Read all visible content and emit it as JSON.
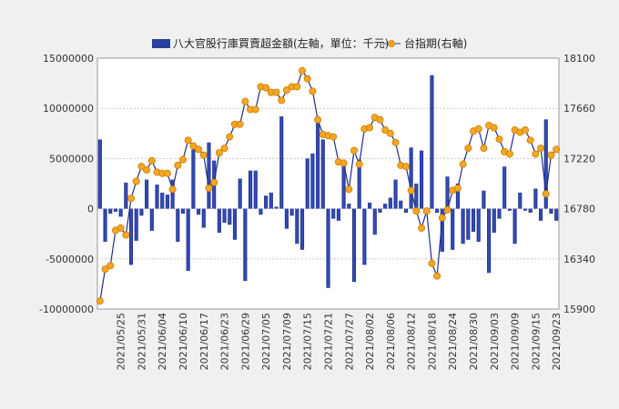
{
  "chart_data": {
    "type": "bar+line",
    "legend": [
      {
        "name": "八大官股行庫買賣超金額(左軸，單位：千元)",
        "type": "bar",
        "color": "#2a3f9e"
      },
      {
        "name": "台指期(右軸)",
        "type": "line",
        "color": "#f5a623"
      }
    ],
    "left_axis": {
      "min": -10000000,
      "max": 15000000,
      "ticks": [
        "15000000",
        "10000000",
        "5000000",
        "0",
        "-5000000",
        "-10000000"
      ]
    },
    "right_axis": {
      "min": 15900,
      "max": 18100,
      "ticks": [
        "18100",
        "17660",
        "17220",
        "16780",
        "16340",
        "15900"
      ]
    },
    "x_tick_labels": [
      "2021/05/25",
      "2021/05/31",
      "2021/06/04",
      "2021/06/10",
      "2021/06/17",
      "2021/06/23",
      "2021/06/29",
      "2021/07/05",
      "2021/07/09",
      "2021/07/15",
      "2021/07/21",
      "2021/07/27",
      "2021/08/02",
      "2021/08/06",
      "2021/08/12",
      "2021/08/18",
      "2021/08/24",
      "2021/08/30",
      "2021/09/03",
      "2021/09/09",
      "2021/09/15",
      "2021/09/23"
    ],
    "x_tick_every": 4,
    "bar_values": [
      6900000,
      -3300000,
      -500000,
      -300000,
      -800000,
      2600000,
      -5600000,
      -3200000,
      -700000,
      2900000,
      -2200000,
      2400000,
      1600000,
      1400000,
      2900000,
      -3300000,
      -500000,
      -6200000,
      5900000,
      -600000,
      -1900000,
      6600000,
      4800000,
      -2400000,
      -1400000,
      -1600000,
      -3100000,
      3000000,
      -7200000,
      3800000,
      3800000,
      -600000,
      1300000,
      1600000,
      200000,
      9200000,
      -2000000,
      -700000,
      -3500000,
      -4100000,
      5000000,
      5500000,
      8600000,
      6900000,
      -7900000,
      -1000000,
      -1200000,
      4800000,
      500000,
      -7300000,
      4900000,
      -5600000,
      600000,
      -2600000,
      -400000,
      500000,
      1100000,
      2900000,
      800000,
      -400000,
      6100000,
      2500000,
      5800000,
      -200000,
      13300000,
      -400000,
      -4300000,
      3200000,
      -4100000,
      2500000,
      -3500000,
      -3100000,
      -2300000,
      -3300000,
      1800000,
      -6400000,
      -2400000,
      -1000000,
      4200000,
      -200000,
      -3500000,
      1600000,
      -200000,
      -400000,
      2000000,
      -1200000,
      8900000,
      -500000,
      -1200000
    ],
    "line_values": [
      15970,
      16250,
      16280,
      16590,
      16610,
      16550,
      16870,
      17020,
      17150,
      17120,
      17200,
      17100,
      17090,
      17090,
      16950,
      17160,
      17210,
      17380,
      17330,
      17300,
      17250,
      16960,
      17010,
      17270,
      17310,
      17410,
      17520,
      17520,
      17720,
      17650,
      17650,
      17850,
      17840,
      17800,
      17800,
      17730,
      17820,
      17850,
      17850,
      17990,
      17920,
      17810,
      17560,
      17430,
      17420,
      17410,
      17190,
      17180,
      16950,
      17290,
      17170,
      17480,
      17490,
      17580,
      17560,
      17470,
      17440,
      17360,
      17160,
      17150,
      16940,
      16760,
      16610,
      16760,
      16300,
      16190,
      16700,
      16770,
      16940,
      16960,
      17170,
      17310,
      17460,
      17480,
      17310,
      17510,
      17490,
      17390,
      17280,
      17260,
      17470,
      17450,
      17470,
      17380,
      17260,
      17310,
      16910,
      17250,
      17300
    ]
  }
}
